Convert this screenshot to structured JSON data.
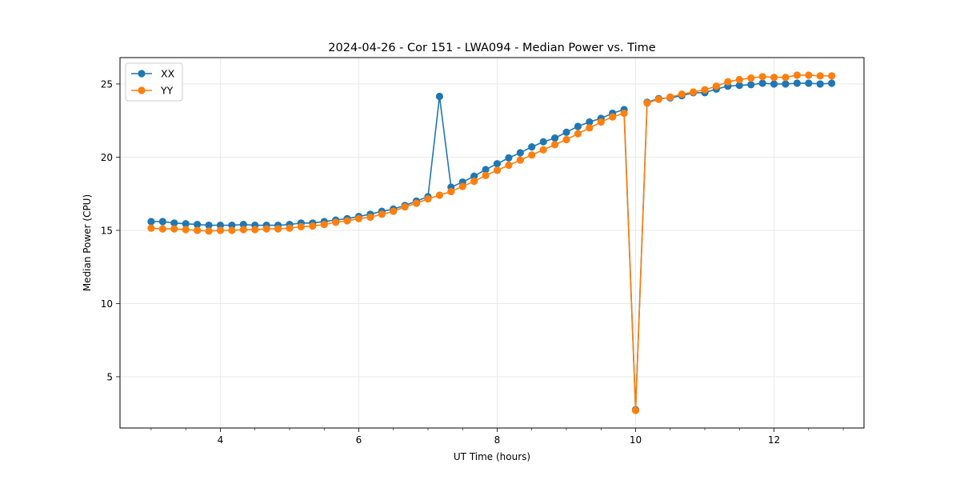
{
  "chart_data": {
    "type": "line",
    "title": "2024-04-26 - Cor 151 - LWA094 - Median Power vs. Time",
    "xlabel": "UT Time (hours)",
    "ylabel": "Median Power (CPU)",
    "xlim": [
      2.55,
      13.3
    ],
    "ylim": [
      1.5,
      26.8
    ],
    "xticks": [
      4,
      6,
      8,
      10,
      12
    ],
    "yticks": [
      5,
      10,
      15,
      20,
      25
    ],
    "grid": true,
    "legend_position": "top-left",
    "x": [
      3.0,
      3.1667,
      3.3333,
      3.5,
      3.6667,
      3.8333,
      4.0,
      4.1667,
      4.3333,
      4.5,
      4.6667,
      4.8333,
      5.0,
      5.1667,
      5.3333,
      5.5,
      5.6667,
      5.8333,
      6.0,
      6.1667,
      6.3333,
      6.5,
      6.6667,
      6.8333,
      7.0,
      7.1667,
      7.3333,
      7.5,
      7.6667,
      7.8333,
      8.0,
      8.1667,
      8.3333,
      8.5,
      8.6667,
      8.8333,
      9.0,
      9.1667,
      9.3333,
      9.5,
      9.6667,
      9.8333,
      10.0,
      10.1667,
      10.3333,
      10.5,
      10.6667,
      10.8333,
      11.0,
      11.1667,
      11.3333,
      11.5,
      11.6667,
      11.8333,
      12.0,
      12.1667,
      12.3333,
      12.5,
      12.6667,
      12.8333
    ],
    "series": [
      {
        "name": "XX",
        "color": "#1f77b4",
        "values": [
          15.6,
          15.6,
          15.5,
          15.45,
          15.4,
          15.35,
          15.35,
          15.35,
          15.4,
          15.35,
          15.35,
          15.35,
          15.4,
          15.5,
          15.5,
          15.6,
          15.7,
          15.8,
          15.95,
          16.1,
          16.3,
          16.45,
          16.7,
          17.0,
          17.3,
          24.15,
          17.95,
          18.3,
          18.7,
          19.15,
          19.55,
          19.95,
          20.3,
          20.7,
          21.05,
          21.3,
          21.7,
          22.1,
          22.4,
          22.65,
          23.0,
          23.25,
          2.75,
          23.75,
          24.0,
          24.05,
          24.2,
          24.4,
          24.4,
          24.65,
          24.85,
          24.9,
          24.95,
          25.05,
          25.0,
          25.0,
          25.05,
          25.05,
          25.0,
          25.05
        ]
      },
      {
        "name": "YY",
        "color": "#ff7f0e",
        "values": [
          15.15,
          15.1,
          15.1,
          15.05,
          15.0,
          14.95,
          15.0,
          15.0,
          15.05,
          15.05,
          15.1,
          15.1,
          15.15,
          15.25,
          15.3,
          15.4,
          15.55,
          15.65,
          15.8,
          15.9,
          16.1,
          16.3,
          16.6,
          16.85,
          17.15,
          17.4,
          17.65,
          18.0,
          18.35,
          18.75,
          19.1,
          19.45,
          19.8,
          20.15,
          20.5,
          20.85,
          21.2,
          21.6,
          22.0,
          22.4,
          22.75,
          23.0,
          2.7,
          23.7,
          23.95,
          24.1,
          24.3,
          24.45,
          24.6,
          24.85,
          25.15,
          25.3,
          25.4,
          25.5,
          25.45,
          25.45,
          25.6,
          25.6,
          25.55,
          25.55
        ]
      }
    ]
  }
}
